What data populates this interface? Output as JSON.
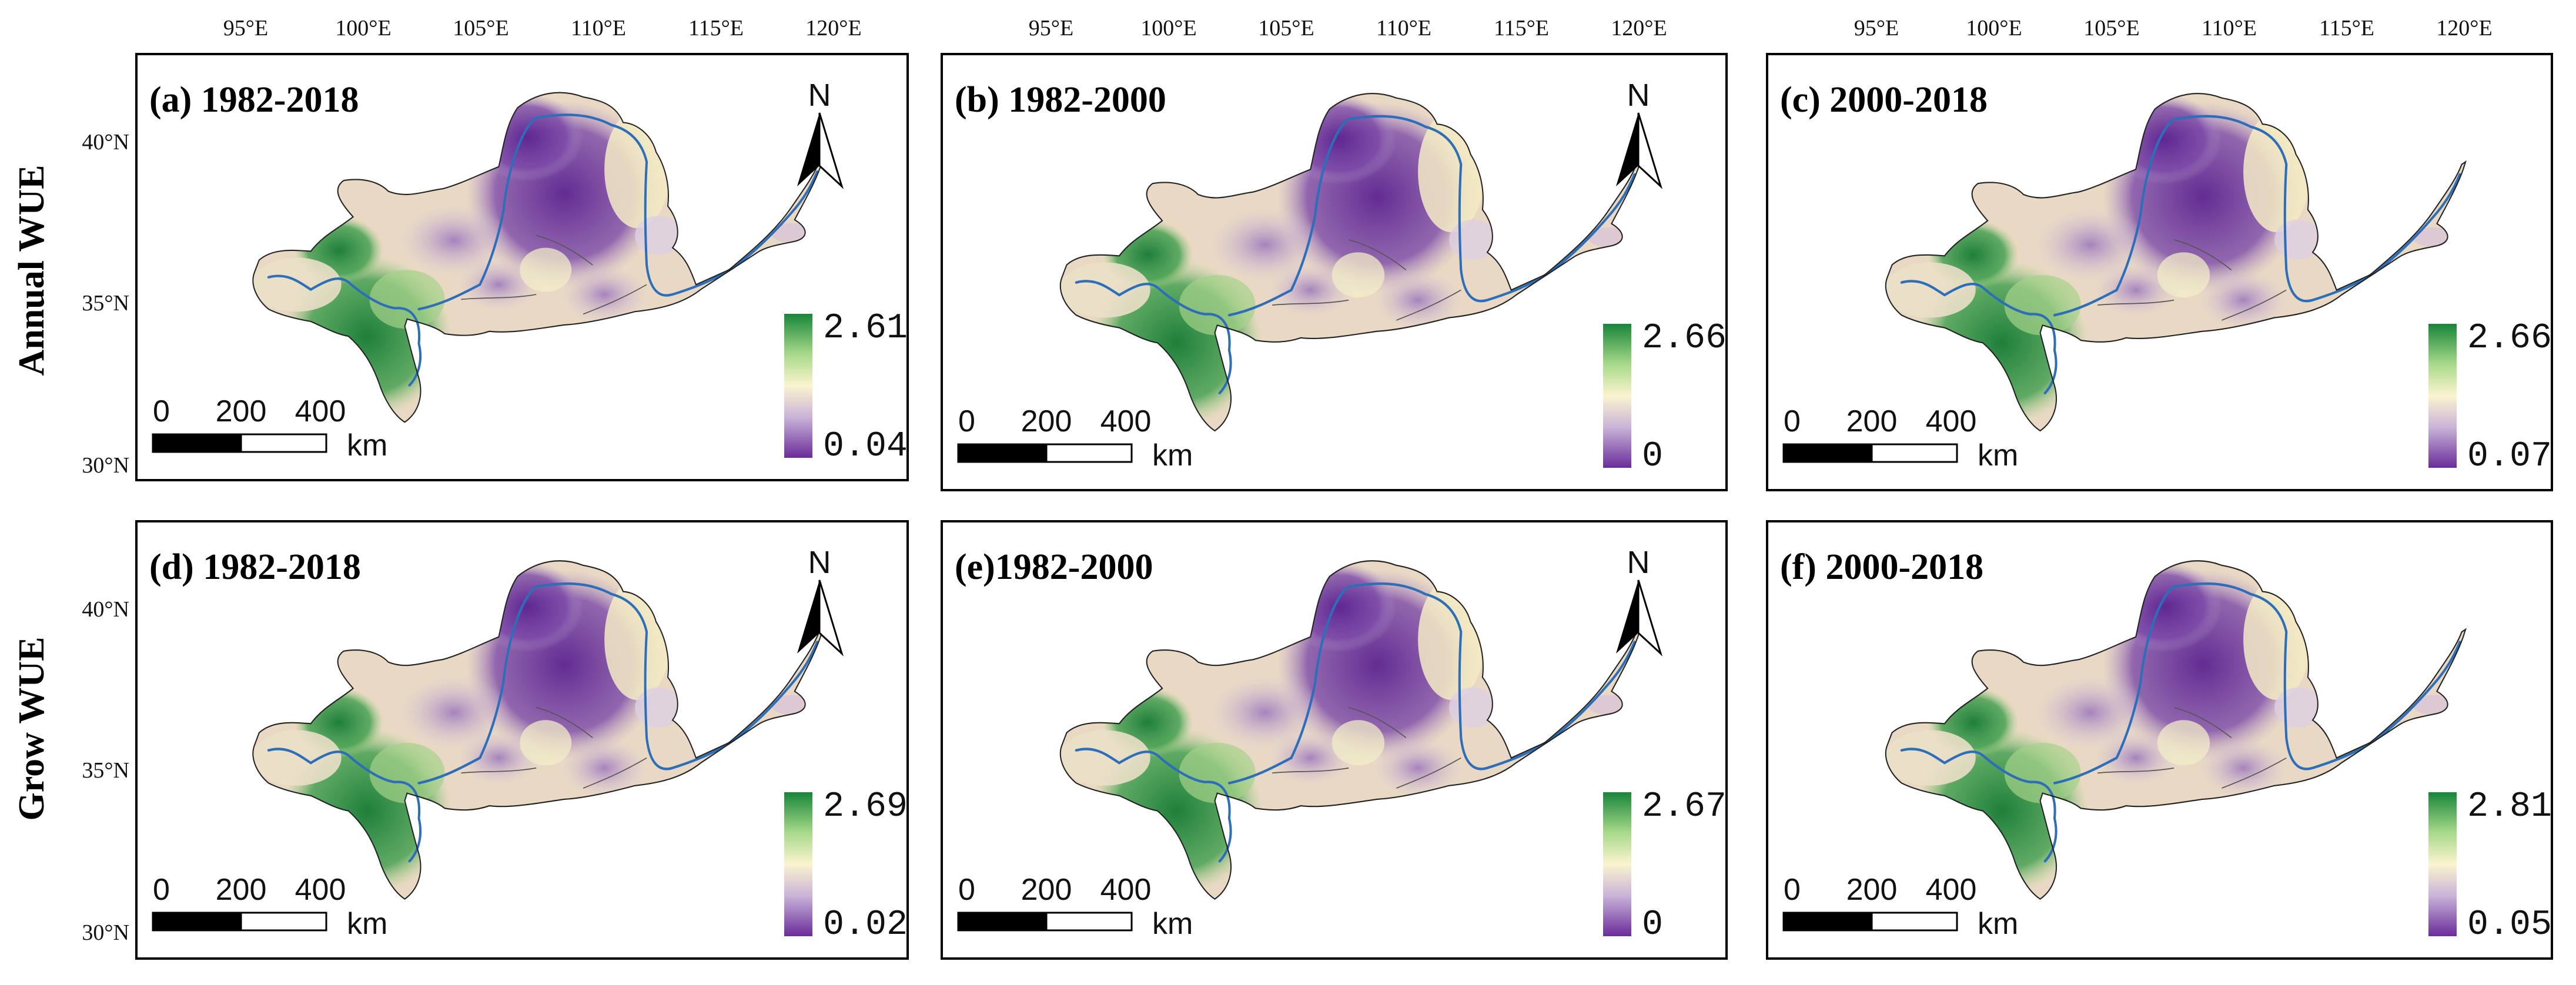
{
  "figure": {
    "row_labels": [
      "Annual WUE",
      "Grow WUE"
    ],
    "lon_ticks": [
      "95°E",
      "100°E",
      "105°E",
      "110°E",
      "115°E",
      "120°E"
    ],
    "lat_ticks": [
      "40°N",
      "35°N",
      "30°N"
    ],
    "north_label": "N",
    "scale_bar": {
      "labels": [
        "0",
        "200",
        "400"
      ],
      "unit": "km"
    },
    "colors": {
      "low": "#6a2c9a",
      "mid_low": "#c9b3d8",
      "mid": "#fbf4d0",
      "mid_high": "#a8d98a",
      "high": "#17853a",
      "river": "#2d6eb8",
      "boundary": "#222222"
    }
  },
  "panels": [
    {
      "title": "(a) 1982-2018",
      "legend_max": "2.61",
      "legend_min": "0.04",
      "show_north": true,
      "show_lon": true
    },
    {
      "title": "(b) 1982-2000",
      "legend_max": "2.66",
      "legend_min": "0",
      "show_north": true,
      "show_lon": true
    },
    {
      "title": "(c) 2000-2018",
      "legend_max": "2.66",
      "legend_min": "0.07",
      "show_north": false,
      "show_lon": true
    },
    {
      "title": "(d) 1982-2018",
      "legend_max": "2.69",
      "legend_min": "0.02",
      "show_north": true,
      "show_lon": false
    },
    {
      "title": "(e)1982-2000",
      "legend_max": "2.67",
      "legend_min": "0",
      "show_north": true,
      "show_lon": false
    },
    {
      "title": "(f)  2000-2018",
      "legend_max": "2.81",
      "legend_min": "0.05",
      "show_north": false,
      "show_lon": false
    }
  ]
}
